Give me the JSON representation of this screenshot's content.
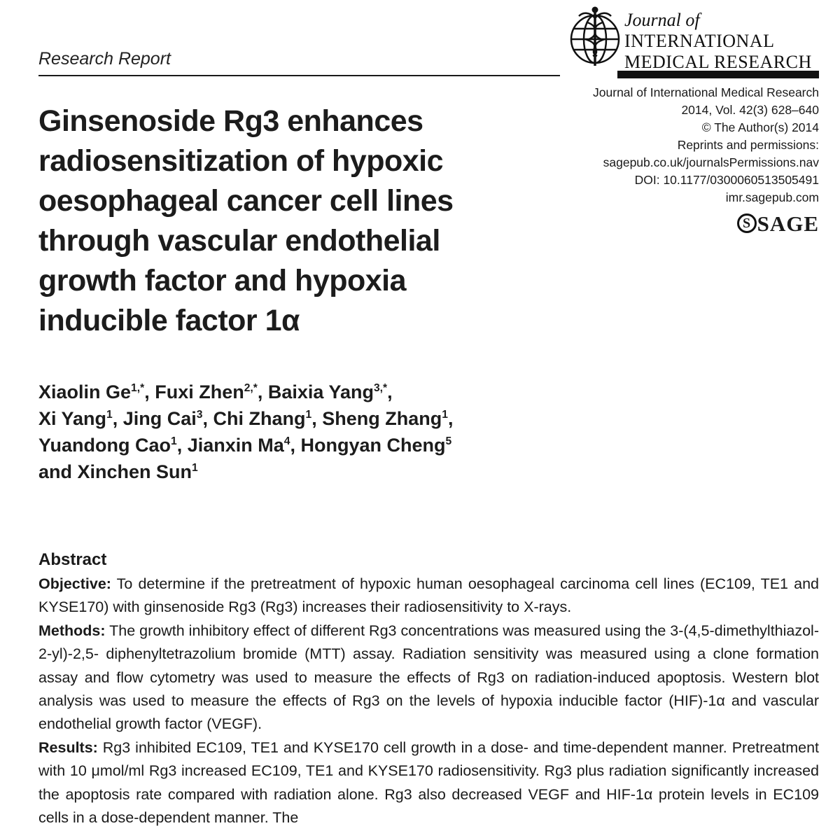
{
  "kicker": {
    "label": "Research Report"
  },
  "masthead": {
    "journal_of": "Journal of",
    "name_line1": "INTERNATIONAL",
    "name_line2": "MEDICAL RESEARCH",
    "logo_icon": "caduceus-globe"
  },
  "imprint": {
    "journal": "Journal of International Medical Research",
    "citation": "2014, Vol. 42(3) 628–640",
    "copyright": "© The Author(s) 2014",
    "reprints_label": "Reprints and permissions:",
    "permissions_url": "sagepub.co.uk/journalsPermissions.nav",
    "doi": "DOI: 10.1177/0300060513505491",
    "website": "imr.sagepub.com",
    "publisher_mark": "S",
    "publisher": "SAGE"
  },
  "article": {
    "title_lines": [
      "Ginsenoside Rg3 enhances",
      "radiosensitization of hypoxic",
      "oesophageal cancer cell lines",
      "through vascular endothelial",
      "growth factor and hypoxia",
      "inducible factor 1α"
    ],
    "authors": {
      "lines": [
        [
          {
            "t": "Xiaolin Ge",
            "s": "1,*"
          },
          {
            "t": ", Fuxi Zhen",
            "s": "2,*"
          },
          {
            "t": ", Baixia Yang",
            "s": "3,*"
          },
          {
            "t": ","
          }
        ],
        [
          {
            "t": "Xi Yang",
            "s": "1"
          },
          {
            "t": ", Jing Cai",
            "s": "3"
          },
          {
            "t": ", Chi Zhang",
            "s": "1"
          },
          {
            "t": ", Sheng Zhang",
            "s": "1"
          },
          {
            "t": ","
          }
        ],
        [
          {
            "t": "Yuandong Cao",
            "s": "1"
          },
          {
            "t": ", Jianxin Ma",
            "s": "4"
          },
          {
            "t": ", Hongyan Cheng",
            "s": "5"
          }
        ],
        [
          {
            "t": "and Xinchen Sun",
            "s": "1"
          }
        ]
      ]
    }
  },
  "abstract": {
    "heading": "Abstract",
    "sections": [
      {
        "label": "Objective:",
        "text": " To determine if the pretreatment of hypoxic human oesophageal carcinoma cell lines (EC109, TE1 and KYSE170) with ginsenoside Rg3 (Rg3) increases their radiosensitivity to X-rays."
      },
      {
        "label": "Methods:",
        "text": " The growth inhibitory effect of different Rg3 concentrations was measured using the 3-(4,5-dimethylthiazol-2-yl)-2,5- diphenyltetrazolium bromide (MTT) assay. Radiation sensitivity was measured using a clone formation assay and flow cytometry was used to measure the effects of Rg3 on radiation-induced apoptosis. Western blot analysis was used to measure the effects of Rg3 on the levels of hypoxia inducible factor (HIF)-1α and vascular endothelial growth factor (VEGF)."
      },
      {
        "label": "Results:",
        "text": " Rg3 inhibited EC109, TE1 and KYSE170 cell growth in a dose- and time-dependent manner. Pretreatment with 10 μmol/ml Rg3 increased EC109, TE1 and KYSE170 radiosensitivity. Rg3 plus radiation significantly increased the apoptosis rate compared with radiation alone. Rg3 also decreased VEGF and HIF-1α protein levels in EC109 cells in a dose-dependent manner. The"
      }
    ]
  }
}
